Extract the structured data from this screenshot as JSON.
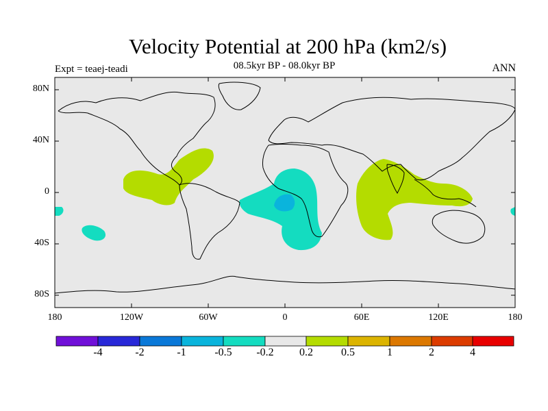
{
  "title": "Velocity Potential at 200 hPa (km2/s)",
  "subtitle": "08.5kyr BP - 08.0kyr BP",
  "experiment": "Expt = teaej-teadi",
  "season": "ANN",
  "lat_ticks": [
    "80N",
    "40N",
    "0",
    "40S",
    "80S"
  ],
  "lon_ticks": [
    "180",
    "120W",
    "60W",
    "0",
    "60E",
    "120E",
    "180"
  ],
  "colorbar": {
    "colors": [
      "#7010d8",
      "#2828d8",
      "#0a78d8",
      "#0ab4dc",
      "#14dcc0",
      "#e8e8e8",
      "#b4dc00",
      "#dcb400",
      "#dc7800",
      "#dc3c00",
      "#e80000"
    ],
    "labels": [
      "-4",
      "-2",
      "-1",
      "-0.5",
      "-0.2",
      "0.2",
      "0.5",
      "1",
      "2",
      "4"
    ]
  },
  "colors": {
    "land_ocean": "#e8e8e8",
    "positive_anomaly": "#b4dc00",
    "negative_anomaly": "#14dcc0",
    "strong_negative": "#0ab4dc"
  }
}
